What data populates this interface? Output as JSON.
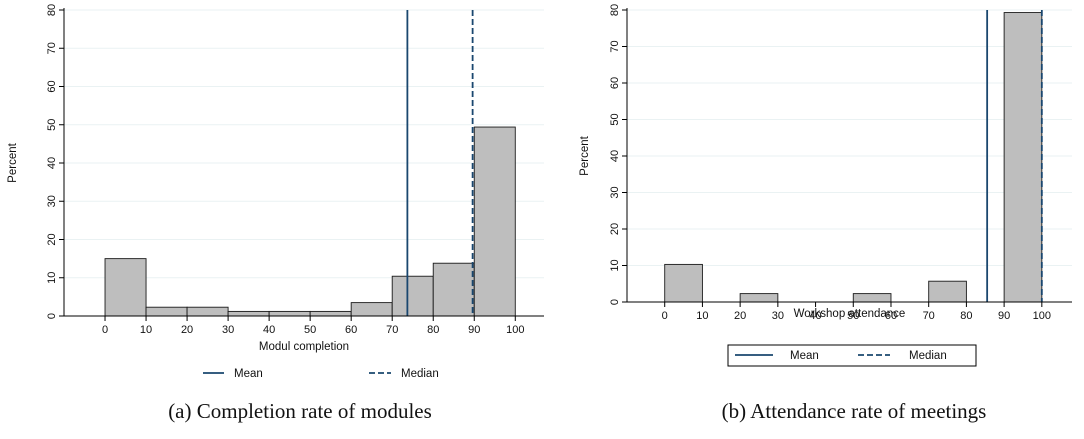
{
  "chart_data": [
    {
      "type": "bar",
      "caption": "(a) Completion rate of modules",
      "xlabel": "Modul completion",
      "ylabel": "Percent",
      "xlim": [
        -10,
        107
      ],
      "ylim": [
        0,
        80
      ],
      "xticks": [
        0,
        10,
        20,
        30,
        40,
        50,
        60,
        70,
        80,
        90,
        100
      ],
      "yticks": [
        0,
        10,
        20,
        30,
        40,
        50,
        60,
        70,
        80
      ],
      "bins": [
        {
          "from": 0,
          "to": 10,
          "value": 15.0
        },
        {
          "from": 10,
          "to": 20,
          "value": 2.3
        },
        {
          "from": 20,
          "to": 30,
          "value": 2.3
        },
        {
          "from": 30,
          "to": 40,
          "value": 1.2
        },
        {
          "from": 40,
          "to": 50,
          "value": 1.2
        },
        {
          "from": 50,
          "to": 60,
          "value": 1.2
        },
        {
          "from": 60,
          "to": 70,
          "value": 3.5
        },
        {
          "from": 70,
          "to": 80,
          "value": 10.4
        },
        {
          "from": 80,
          "to": 90,
          "value": 13.8
        },
        {
          "from": 90,
          "to": 100,
          "value": 49.4
        }
      ],
      "mean": 73.7,
      "median": 89.6,
      "legend": [
        {
          "label": "Mean",
          "style": "solid"
        },
        {
          "label": "Median",
          "style": "dashed"
        }
      ],
      "legend_position": "bottom",
      "legend_boxed": false,
      "grid": true
    },
    {
      "type": "bar",
      "caption": "(b) Attendance rate of meetings",
      "xlabel": "Workshop attendance",
      "ylabel": "Percent",
      "xlim": [
        -10,
        108
      ],
      "ylim": [
        0,
        80
      ],
      "xticks": [
        0,
        10,
        20,
        30,
        40,
        50,
        60,
        70,
        80,
        90,
        100
      ],
      "yticks": [
        0,
        10,
        20,
        30,
        40,
        50,
        60,
        70,
        80
      ],
      "bins": [
        {
          "from": 0,
          "to": 10,
          "value": 10.3
        },
        {
          "from": 20,
          "to": 30,
          "value": 2.3
        },
        {
          "from": 50,
          "to": 60,
          "value": 2.3
        },
        {
          "from": 70,
          "to": 80,
          "value": 5.7
        },
        {
          "from": 90,
          "to": 100,
          "value": 79.3
        }
      ],
      "mean": 85.5,
      "median": 100,
      "legend": [
        {
          "label": "Mean",
          "style": "solid"
        },
        {
          "label": "Median",
          "style": "dashed"
        }
      ],
      "legend_position": "bottom",
      "legend_boxed": true,
      "grid": true
    }
  ],
  "colors": {
    "bar_fill": "#bebebe",
    "bar_stroke": "#1a1a1a",
    "mean_line": "#1a476f",
    "median_line": "#1a476f",
    "grid": "#eaf2f3",
    "axis": "#000000"
  }
}
